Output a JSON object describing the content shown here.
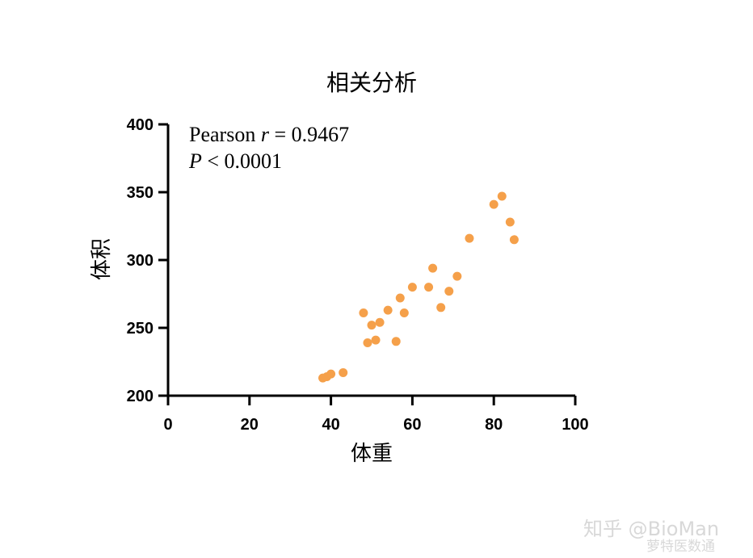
{
  "chart_data": {
    "type": "scatter",
    "title": "相关分析",
    "xlabel": "体重",
    "ylabel": "体积",
    "xlim": [
      0,
      100
    ],
    "ylim": [
      200,
      400
    ],
    "xticks": [
      "0",
      "20",
      "40",
      "60",
      "80",
      "100"
    ],
    "yticks": [
      "200",
      "250",
      "300",
      "350",
      "400"
    ],
    "grid": false,
    "marker_color": "#f5a04a",
    "annotation": {
      "line1_prefix": "Pearson ",
      "line1_var": "r",
      "line1_suffix": " = 0.9467",
      "line2_var": "P",
      "line2_suffix": " < 0.0001"
    },
    "points": [
      {
        "x": 38,
        "y": 213
      },
      {
        "x": 39,
        "y": 214
      },
      {
        "x": 40,
        "y": 216
      },
      {
        "x": 43,
        "y": 217
      },
      {
        "x": 48,
        "y": 261
      },
      {
        "x": 49,
        "y": 239
      },
      {
        "x": 50,
        "y": 252
      },
      {
        "x": 51,
        "y": 241
      },
      {
        "x": 52,
        "y": 254
      },
      {
        "x": 54,
        "y": 263
      },
      {
        "x": 56,
        "y": 240
      },
      {
        "x": 57,
        "y": 272
      },
      {
        "x": 58,
        "y": 261
      },
      {
        "x": 60,
        "y": 280
      },
      {
        "x": 64,
        "y": 280
      },
      {
        "x": 65,
        "y": 294
      },
      {
        "x": 67,
        "y": 265
      },
      {
        "x": 69,
        "y": 277
      },
      {
        "x": 71,
        "y": 288
      },
      {
        "x": 74,
        "y": 316
      },
      {
        "x": 80,
        "y": 341
      },
      {
        "x": 82,
        "y": 347
      },
      {
        "x": 84,
        "y": 328
      },
      {
        "x": 85,
        "y": 315
      }
    ]
  },
  "watermark": {
    "text": "知乎 @BioMan",
    "sub": "萝特医数通"
  }
}
